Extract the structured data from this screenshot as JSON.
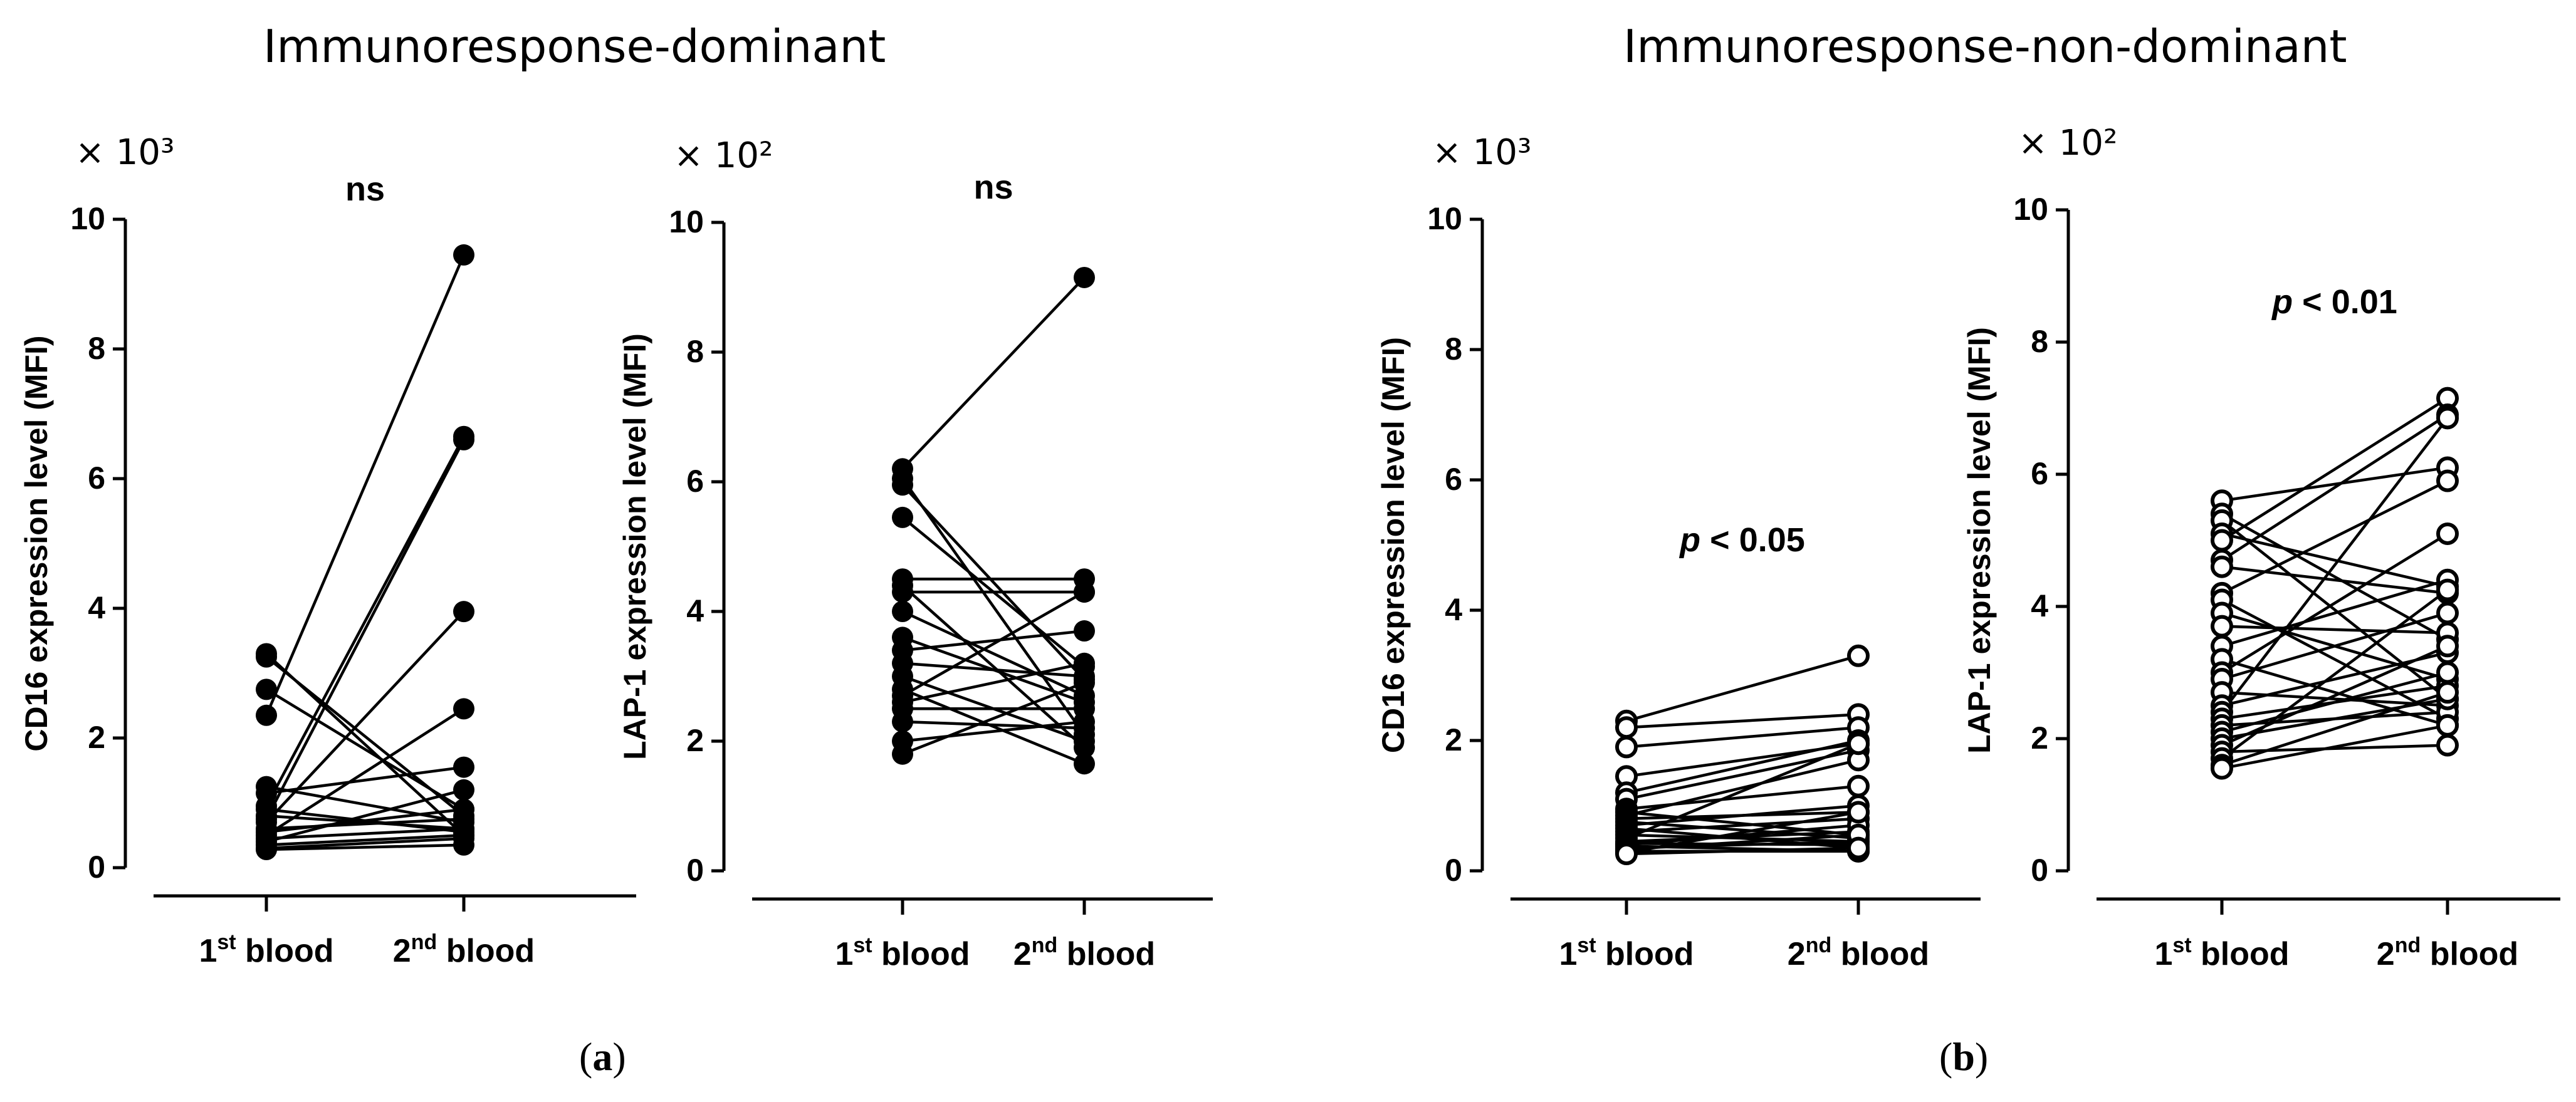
{
  "groups": [
    {
      "title": "Immunoresponse-dominant",
      "label_letter": "a"
    },
    {
      "title": "Immunoresponse-non-dominant",
      "label_letter": "b"
    }
  ],
  "marker_styles": {
    "filled": "#000000",
    "open": "#ffffff",
    "line": "#000000"
  },
  "chart_data": [
    {
      "type": "line",
      "group": "Immunoresponse-dominant",
      "panel": "a",
      "multiplier": "× 10³",
      "ylabel": "CD16 expression level (MFI)",
      "ylim": [
        0,
        10
      ],
      "yticks": [
        0,
        2,
        4,
        6,
        8,
        10
      ],
      "categories": [
        "1st blood",
        "2nd blood"
      ],
      "significance": "ns",
      "marker": "filled",
      "pairs": [
        [
          3.3,
          0.5
        ],
        [
          3.25,
          0.8
        ],
        [
          2.75,
          0.9
        ],
        [
          2.35,
          9.45
        ],
        [
          1.25,
          0.7
        ],
        [
          1.15,
          1.55
        ],
        [
          0.95,
          6.65
        ],
        [
          0.9,
          0.55
        ],
        [
          0.8,
          0.6
        ],
        [
          0.75,
          6.6
        ],
        [
          0.7,
          3.95
        ],
        [
          0.6,
          0.75
        ],
        [
          0.55,
          0.9
        ],
        [
          0.5,
          2.45
        ],
        [
          0.45,
          0.6
        ],
        [
          0.4,
          1.2
        ],
        [
          0.35,
          0.5
        ],
        [
          0.3,
          0.45
        ],
        [
          0.28,
          0.35
        ]
      ]
    },
    {
      "type": "line",
      "group": "Immunoresponse-dominant",
      "panel": "a",
      "multiplier": "× 10²",
      "ylabel": "LAP-1 expression level (MFI)",
      "ylim": [
        0,
        10
      ],
      "yticks": [
        0,
        2,
        4,
        6,
        8,
        10
      ],
      "categories": [
        "1st blood",
        "2nd blood"
      ],
      "significance": "ns",
      "marker": "filled",
      "pairs": [
        [
          6.2,
          9.15
        ],
        [
          6.05,
          2.1
        ],
        [
          5.95,
          2.95
        ],
        [
          5.45,
          3.15
        ],
        [
          4.5,
          4.5
        ],
        [
          4.4,
          1.9
        ],
        [
          4.3,
          4.3
        ],
        [
          4.0,
          2.7
        ],
        [
          3.6,
          2.6
        ],
        [
          3.4,
          3.7
        ],
        [
          3.2,
          3.0
        ],
        [
          3.0,
          2.0
        ],
        [
          2.8,
          1.65
        ],
        [
          2.7,
          4.3
        ],
        [
          2.6,
          3.2
        ],
        [
          2.5,
          2.5
        ],
        [
          2.3,
          2.2
        ],
        [
          2.0,
          2.3
        ],
        [
          1.8,
          2.9
        ]
      ]
    },
    {
      "type": "line",
      "group": "Immunoresponse-non-dominant",
      "panel": "b",
      "multiplier": "× 10³",
      "ylabel": "CD16 expression level (MFI)",
      "ylim": [
        0,
        10
      ],
      "yticks": [
        0,
        2,
        4,
        6,
        8,
        10
      ],
      "categories": [
        "1st blood",
        "2nd blood"
      ],
      "significance": "p < 0.05",
      "marker": "open",
      "pairs": [
        [
          2.3,
          3.3
        ],
        [
          2.2,
          2.4
        ],
        [
          1.9,
          2.2
        ],
        [
          1.45,
          1.95
        ],
        [
          1.2,
          2.0
        ],
        [
          1.1,
          1.85
        ],
        [
          0.95,
          1.3
        ],
        [
          0.9,
          0.55
        ],
        [
          0.85,
          1.7
        ],
        [
          0.8,
          0.9
        ],
        [
          0.75,
          0.5
        ],
        [
          0.7,
          1.0
        ],
        [
          0.65,
          0.35
        ],
        [
          0.6,
          0.8
        ],
        [
          0.55,
          0.45
        ],
        [
          0.5,
          1.95
        ],
        [
          0.45,
          0.6
        ],
        [
          0.42,
          0.4
        ],
        [
          0.4,
          0.7
        ],
        [
          0.38,
          0.3
        ],
        [
          0.35,
          0.45
        ],
        [
          0.33,
          0.55
        ],
        [
          0.3,
          0.3
        ],
        [
          0.28,
          0.9
        ],
        [
          0.26,
          0.35
        ]
      ]
    },
    {
      "type": "line",
      "group": "Immunoresponse-non-dominant",
      "panel": "b",
      "multiplier": "× 10²",
      "ylabel": "LAP-1 expression level (MFI)",
      "ylim": [
        0,
        10
      ],
      "yticks": [
        0,
        2,
        4,
        6,
        8,
        10
      ],
      "categories": [
        "1st blood",
        "2nd blood"
      ],
      "significance": "p < 0.01",
      "marker": "open",
      "pairs": [
        [
          5.6,
          6.1
        ],
        [
          5.4,
          3.5
        ],
        [
          5.3,
          2.6
        ],
        [
          5.1,
          4.3
        ],
        [
          5.0,
          7.15
        ],
        [
          4.7,
          6.9
        ],
        [
          4.6,
          4.2
        ],
        [
          4.2,
          5.9
        ],
        [
          4.1,
          2.3
        ],
        [
          3.9,
          2.9
        ],
        [
          3.7,
          3.6
        ],
        [
          3.4,
          4.4
        ],
        [
          3.2,
          2.2
        ],
        [
          3.0,
          5.1
        ],
        [
          2.9,
          3.9
        ],
        [
          2.7,
          2.5
        ],
        [
          2.5,
          3.3
        ],
        [
          2.4,
          6.85
        ],
        [
          2.3,
          2.8
        ],
        [
          2.2,
          2.4
        ],
        [
          2.1,
          3.0
        ],
        [
          2.0,
          2.6
        ],
        [
          1.9,
          3.4
        ],
        [
          1.8,
          1.9
        ],
        [
          1.7,
          4.25
        ],
        [
          1.6,
          2.7
        ],
        [
          1.55,
          2.2
        ]
      ]
    }
  ]
}
